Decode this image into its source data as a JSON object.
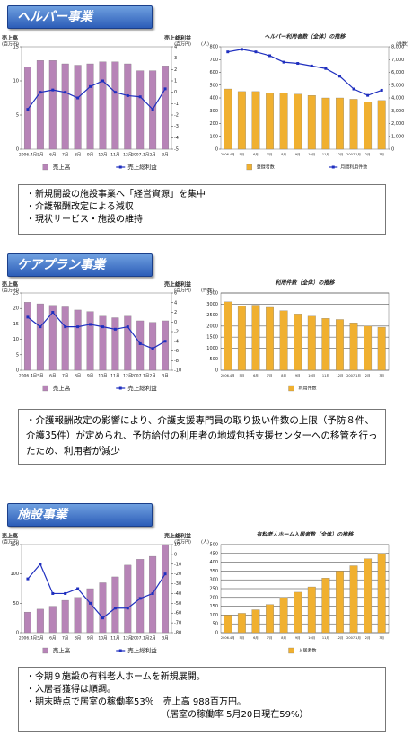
{
  "sections": [
    {
      "title": "ヘルパー事業",
      "bullets": [
        "・新規開設の施設事業へ「経営資源」を集中",
        "・介護報酬改定による減収",
        "・現状サービス・施設の維持"
      ]
    },
    {
      "title": "ケアプラン事業",
      "bullets": [
        "・介護報酬改定の影響により、介護支援専門員の取り扱い件数の上限（予防８件、介護35件）が定められ、予防給付の利用者の地域包括支援センターへの移管を行ったため、利用者が減少"
      ]
    },
    {
      "title": "施設事業",
      "bullets": [
        "・今期９施設の有料老人ホームを新規展開。",
        "・入居者獲得は順調。",
        "・期末時点で居室の稼働率53％　売上高 988百万円。",
        "（居室の稼働率 5月20日現在59%）"
      ]
    }
  ],
  "chart_data": [
    {
      "type": "combo",
      "ylabel": "売上高",
      "yunit": "(百万円)",
      "y2label": "売上総利益",
      "y2unit": "(百万円)",
      "categories": [
        "2006.4月",
        "5月",
        "6月",
        "7月",
        "8月",
        "9月",
        "10月",
        "11月",
        "12月",
        "2007.1月",
        "2月",
        "3月"
      ],
      "series": [
        {
          "name": "売上高",
          "color": "#b784b7",
          "values": [
            12,
            13,
            13,
            12.5,
            12.3,
            12.5,
            12.8,
            12.8,
            12.5,
            11.5,
            11.5,
            12.2
          ]
        },
        {
          "name": "売上総利益",
          "color": "#1f2fbf",
          "axis": "y2",
          "values": [
            -1.5,
            0,
            0.2,
            0,
            -0.5,
            0.5,
            1,
            0,
            -0.3,
            -0.4,
            -1.5,
            0.3
          ]
        }
      ],
      "ylim": [
        0,
        15
      ],
      "yticks": [
        0,
        5,
        10,
        15
      ],
      "y2lim": [
        -5,
        4
      ],
      "y2ticks": [
        -5,
        -4,
        -3,
        -2,
        -1,
        0,
        1,
        2,
        3,
        4
      ],
      "grid": false
    },
    {
      "type": "combo",
      "title": "ヘルパー利用者数（全体）の推移",
      "yunit": "(人)",
      "y2unit": "(件数)",
      "categories": [
        "2006.4月",
        "5月",
        "6月",
        "7月",
        "8月",
        "9月",
        "10月",
        "11月",
        "12月",
        "2007.1月",
        "2月",
        "3月"
      ],
      "series": [
        {
          "name": "登録者数",
          "color": "#f0b030",
          "values": [
            470,
            450,
            450,
            440,
            440,
            430,
            420,
            400,
            400,
            390,
            370,
            380
          ]
        },
        {
          "name": "月間利用件数",
          "color": "#1f2fbf",
          "axis": "y2",
          "values": [
            7600,
            7800,
            7600,
            7300,
            6800,
            6700,
            6500,
            6300,
            5700,
            4700,
            4200,
            4600
          ]
        }
      ],
      "ylim": [
        0,
        800
      ],
      "yticks": [
        0,
        100,
        200,
        300,
        400,
        500,
        600,
        700,
        800
      ],
      "y2lim": [
        0,
        8000
      ],
      "y2ticks": [
        0,
        {
          "value": 1000,
          "label": "1,000"
        },
        {
          "value": 2000,
          "label": "2,000"
        },
        {
          "value": 3000,
          "label": "3,000"
        },
        {
          "value": 4000,
          "label": "4,000"
        },
        {
          "value": 5000,
          "label": "5,000"
        },
        {
          "value": 6000,
          "label": "6,000"
        },
        {
          "value": 7000,
          "label": "7,000"
        },
        {
          "value": 8000,
          "label": "8,000"
        }
      ],
      "grid": false
    },
    {
      "type": "combo",
      "ylabel": "売上高",
      "yunit": "(百万円)",
      "y2label": "売上総利益",
      "y2unit": "(百万円)",
      "categories": [
        "2006.4月",
        "5月",
        "6月",
        "7月",
        "8月",
        "9月",
        "10月",
        "11月",
        "12月",
        "2007.1月",
        "2月",
        "3月"
      ],
      "series": [
        {
          "name": "売上高",
          "color": "#b784b7",
          "values": [
            22,
            21.5,
            21,
            20.5,
            19.5,
            19,
            17.5,
            17,
            17.5,
            16,
            15.5,
            16
          ]
        },
        {
          "name": "売上総利益",
          "color": "#1f2fbf",
          "axis": "y2",
          "values": [
            1,
            -1,
            2,
            -1,
            -1,
            -0.5,
            -1,
            -1.5,
            -1,
            -4.5,
            -5.5,
            -4
          ]
        }
      ],
      "ylim": [
        0,
        25
      ],
      "yticks": [
        0,
        5,
        10,
        15,
        20,
        25
      ],
      "y2lim": [
        -10,
        6
      ],
      "y2ticks": [
        -10,
        -8,
        -6,
        -4,
        -2,
        0,
        2,
        4,
        6
      ],
      "grid": false
    },
    {
      "type": "bar",
      "title": "利用件数（全体）の推移",
      "yunit": "(件数)",
      "categories": [
        "2006.4月",
        "5月",
        "6月",
        "7月",
        "8月",
        "9月",
        "10月",
        "11月",
        "12月",
        "2007.1月",
        "2月",
        "3月"
      ],
      "series": [
        {
          "name": "利用件数",
          "color": "#f0b030",
          "values": [
            3100,
            2900,
            2950,
            2850,
            2700,
            2550,
            2450,
            2350,
            2300,
            2150,
            2000,
            1950
          ]
        }
      ],
      "ylim": [
        0,
        3500
      ],
      "yticks": [
        0,
        500,
        1000,
        1500,
        2000,
        2500,
        3000,
        3500
      ],
      "grid": true
    },
    {
      "type": "combo",
      "ylabel": "売上高",
      "yunit": "(百万円)",
      "y2label": "売上総利益",
      "y2unit": "(百万円)",
      "categories": [
        "2006.4月",
        "5月",
        "6月",
        "7月",
        "8月",
        "9月",
        "10月",
        "11月",
        "12月",
        "2007.1月",
        "2月",
        "3月"
      ],
      "series": [
        {
          "name": "売上高",
          "color": "#b784b7",
          "values": [
            35,
            40,
            45,
            55,
            60,
            75,
            85,
            95,
            115,
            125,
            130,
            150
          ]
        },
        {
          "name": "売上総利益",
          "color": "#1f2fbf",
          "axis": "y2",
          "values": [
            -25,
            -10,
            -40,
            -40,
            -35,
            -50,
            -65,
            -55,
            -55,
            -45,
            -40,
            -20
          ]
        }
      ],
      "ylim": [
        0,
        150
      ],
      "yticks": [
        0,
        50,
        100,
        150
      ],
      "y2lim": [
        -80,
        10
      ],
      "y2ticks": [
        -80,
        -70,
        -60,
        -50,
        -40,
        -30,
        -20,
        -10,
        0,
        10
      ],
      "grid": false
    },
    {
      "type": "bar",
      "title": "有料老人ホーム入居者数（全体）の推移",
      "yunit": "(人)",
      "categories": [
        "2006.4月",
        "5月",
        "6月",
        "7月",
        "8月",
        "9月",
        "10月",
        "11月",
        "12月",
        "2007.1月",
        "2月",
        "3月"
      ],
      "series": [
        {
          "name": "入居者数",
          "color": "#f0b030",
          "values": [
            100,
            110,
            130,
            160,
            200,
            230,
            260,
            310,
            350,
            380,
            420,
            450
          ]
        }
      ],
      "ylim": [
        0,
        500
      ],
      "yticks": [
        0,
        50,
        100,
        150,
        200,
        250,
        300,
        350,
        400,
        450,
        500
      ],
      "grid": true
    }
  ]
}
